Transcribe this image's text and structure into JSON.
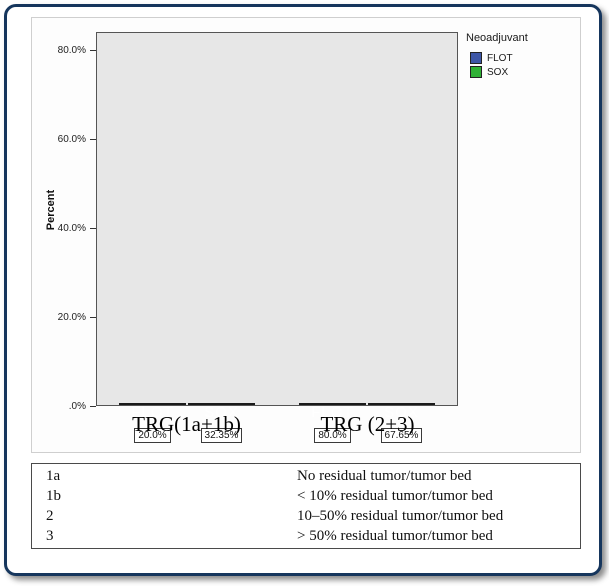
{
  "chart_data": {
    "type": "bar",
    "title": "",
    "xlabel": "",
    "ylabel": "Percent",
    "categories": [
      "TRG(1a+1b)",
      "TRG (2+3)"
    ],
    "series": [
      {
        "name": "FLOT",
        "color": "#3d56a6",
        "values": [
          20.0,
          80.0
        ],
        "labels": [
          "20.0%",
          "80.0%"
        ]
      },
      {
        "name": "SOX",
        "color": "#2fb135",
        "values": [
          32.35,
          67.65
        ],
        "labels": [
          "32.35%",
          "67.65%"
        ]
      }
    ],
    "ylim": [
      0,
      84
    ],
    "yticks": [
      {
        "v": 0,
        "label": ".0%"
      },
      {
        "v": 20,
        "label": "20.0%"
      },
      {
        "v": 40,
        "label": "40.0%"
      },
      {
        "v": 60,
        "label": "60.0%"
      },
      {
        "v": 80,
        "label": "80.0%"
      }
    ],
    "grid": false,
    "legend": {
      "title": "Neoadjuvant",
      "position": "top-right",
      "entries": [
        {
          "label": "FLOT",
          "color": "#3d56a6"
        },
        {
          "label": "SOX",
          "color": "#2fb135"
        }
      ]
    }
  },
  "table": {
    "rows": [
      {
        "grade": "1a",
        "description": "No residual tumor/tumor bed"
      },
      {
        "grade": "1b",
        "description": "< 10% residual tumor/tumor bed"
      },
      {
        "grade": "2",
        "description": "10–50% residual tumor/tumor bed"
      },
      {
        "grade": "3",
        "description": "> 50% residual tumor/tumor bed"
      }
    ]
  },
  "style": {
    "frame_border_color": "#16365d",
    "plot_background": "#e7e7e7",
    "bar_border_color": "#1a1a1a"
  }
}
